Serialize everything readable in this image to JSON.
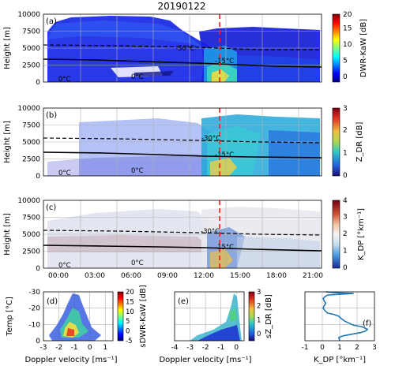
{
  "figure": {
    "title": "20190122"
  },
  "chart_data": [
    {
      "type": "heatmap",
      "panel_label": "(a)",
      "ylabel": "Height [m]",
      "ylim": [
        0,
        10000
      ],
      "yticks": [
        "0",
        "2500",
        "5000",
        "7500",
        "10000"
      ],
      "x_tick_labels": [],
      "colorbar": {
        "label": "DWR-KaW [dB]",
        "ticks": [
          "0",
          "5",
          "10",
          "15",
          "20"
        ],
        "range": [
          -1,
          20
        ]
      },
      "isotherm_labels": [
        "0°C",
        "-30°C",
        "-15°C",
        "0°C"
      ],
      "event_time": "14:30",
      "isotherms_m": {
        "minus30": 5500,
        "minus15": 3400,
        "zero": 0
      },
      "time_range_h": [
        0,
        23
      ]
    },
    {
      "type": "heatmap",
      "panel_label": "(b)",
      "ylabel": "Height [m]",
      "ylim": [
        0,
        10000
      ],
      "yticks": [
        "0",
        "2500",
        "5000",
        "7500",
        "10000"
      ],
      "x_tick_labels": [],
      "colorbar": {
        "label": "Z_DR [dB]",
        "ticks": [
          "0",
          "1",
          "2",
          "3"
        ],
        "range": [
          0,
          3
        ]
      },
      "isotherm_labels": [
        "-30°C",
        "-15°C",
        "0°C",
        "0°C"
      ],
      "event_time": "14:30"
    },
    {
      "type": "heatmap",
      "panel_label": "(c)",
      "ylabel": "Height [m]",
      "ylim": [
        0,
        10000
      ],
      "yticks": [
        "0",
        "2500",
        "5000",
        "7500",
        "10000"
      ],
      "x_tick_labels": [
        "00:00",
        "03:00",
        "06:00",
        "09:00",
        "12:00",
        "15:00",
        "18:00",
        "21:00"
      ],
      "colorbar": {
        "label": "K_DP [°km⁻¹]",
        "ticks": [
          "0",
          "1",
          "2",
          "3",
          "4"
        ],
        "range": [
          0,
          4
        ]
      },
      "isotherm_labels": [
        "-30°C",
        "-15°C",
        "0°C",
        "0°C"
      ],
      "event_time": "14:30"
    },
    {
      "type": "heatmap",
      "panel_label": "(d)",
      "xlabel": "Doppler velocity [ms⁻¹]",
      "ylabel": "Temp [°C]",
      "xlim": [
        -3,
        1.5
      ],
      "ylim": [
        0,
        -30
      ],
      "xticks": [
        "-3",
        "-2",
        "-1",
        "0",
        "1"
      ],
      "yticks": [
        "0",
        "-10",
        "-20",
        "-30"
      ],
      "colorbar": {
        "label": "sDWR-KaW [dB]",
        "ticks": [
          "20",
          "15",
          "10",
          "5",
          "0",
          "-5"
        ],
        "range": [
          -5,
          20
        ]
      }
    },
    {
      "type": "heatmap",
      "panel_label": "(e)",
      "xlabel": "Doppler velocity [ms⁻¹]",
      "xlim": [
        -4,
        0.5
      ],
      "ylim": [
        0,
        -30
      ],
      "xticks": [
        "-4",
        "-3",
        "-2",
        "-1",
        "0"
      ],
      "colorbar": {
        "label": "sZ_DR [dB]",
        "ticks": [
          "3",
          "2",
          "1",
          "0"
        ],
        "range": [
          -0.5,
          3
        ]
      }
    },
    {
      "type": "line",
      "panel_label": "(f)",
      "xlabel": "K_DP [°km⁻¹]",
      "xlim": [
        -1,
        3
      ],
      "ylim": [
        0,
        -30
      ],
      "xticks": [
        "-1",
        "0",
        "1",
        "2",
        "3"
      ],
      "series": [
        {
          "x": [
            1.0,
            0.95,
            1.2,
            1.7,
            2.2,
            2.5,
            2.6,
            2.3,
            1.8,
            1.5,
            1.3,
            1.1,
            0.95,
            0.7,
            0.3,
            0.15,
            0.05,
            0.1,
            0.2,
            0.1,
            0.05,
            0.15,
            0.3,
            1.0,
            1.8,
            0.6,
            0.2
          ],
          "y": [
            0,
            -2,
            -3,
            -4,
            -5,
            -6,
            -7,
            -8.5,
            -9.5,
            -11,
            -12,
            -13.5,
            -15,
            -16,
            -17,
            -18.5,
            -20,
            -21.5,
            -23,
            -24.5,
            -26,
            -27,
            -28,
            -28.5,
            -29,
            -29.5,
            -30
          ]
        }
      ]
    }
  ]
}
